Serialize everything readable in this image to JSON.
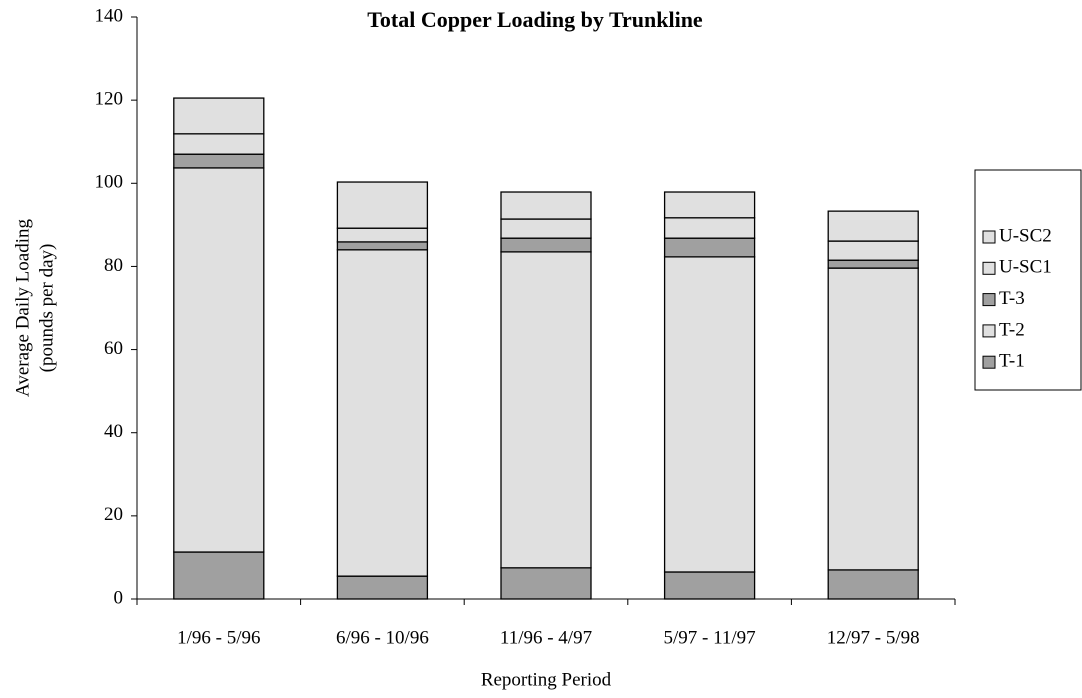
{
  "chart_data": {
    "type": "stacked_bar",
    "title": "Total Copper Loading by Trunkline",
    "xlabel": "Reporting Period",
    "ylabel": [
      "Average Daily Loading",
      "(pounds per day)"
    ],
    "categories": [
      "1/96 - 5/96",
      "6/96 - 10/96",
      "11/96 - 4/97",
      "5/97 - 11/97",
      "12/97 - 5/98"
    ],
    "series": [
      {
        "name": "T-1",
        "color": "#a0a0a0",
        "values": [
          11.3,
          5.5,
          7.5,
          6.5,
          7.0
        ]
      },
      {
        "name": "T-2",
        "color": "#e0e0e0",
        "values": [
          92.4,
          78.5,
          76.0,
          75.8,
          72.6
        ]
      },
      {
        "name": "T-3",
        "color": "#a0a0a0",
        "values": [
          3.3,
          1.9,
          3.3,
          4.5,
          1.9
        ]
      },
      {
        "name": "U-SC1",
        "color": "#e0e0e0",
        "values": [
          4.9,
          3.3,
          4.6,
          4.9,
          4.6
        ]
      },
      {
        "name": "U-SC2",
        "color": "#e0e0e0",
        "values": [
          8.6,
          11.1,
          6.5,
          6.2,
          7.2
        ]
      }
    ],
    "ylim": [
      0,
      140
    ],
    "yticks": [
      0,
      20,
      40,
      60,
      80,
      100,
      120,
      140
    ],
    "grid": false,
    "legend": "right"
  }
}
